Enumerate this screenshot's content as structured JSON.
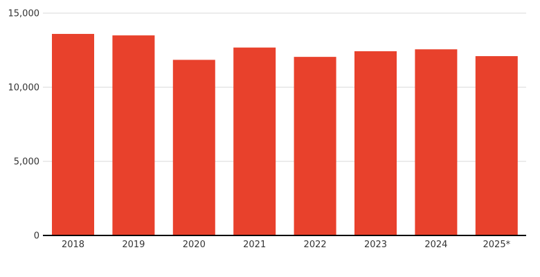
{
  "chart_data": {
    "type": "bar",
    "title": "",
    "xlabel": "",
    "ylabel": "",
    "categories": [
      "2018",
      "2019",
      "2020",
      "2021",
      "2022",
      "2023",
      "2024",
      "2025*"
    ],
    "values": [
      13600,
      13500,
      11850,
      12680,
      12050,
      12430,
      12560,
      12100
    ],
    "ylim": [
      0,
      15000
    ],
    "yticks": [
      0,
      5000,
      10000,
      15000
    ],
    "ytick_labels": [
      "0",
      "5,000",
      "10,000",
      "15,000"
    ],
    "grid": true,
    "legend": "none",
    "bar_color": "#e8412c"
  }
}
